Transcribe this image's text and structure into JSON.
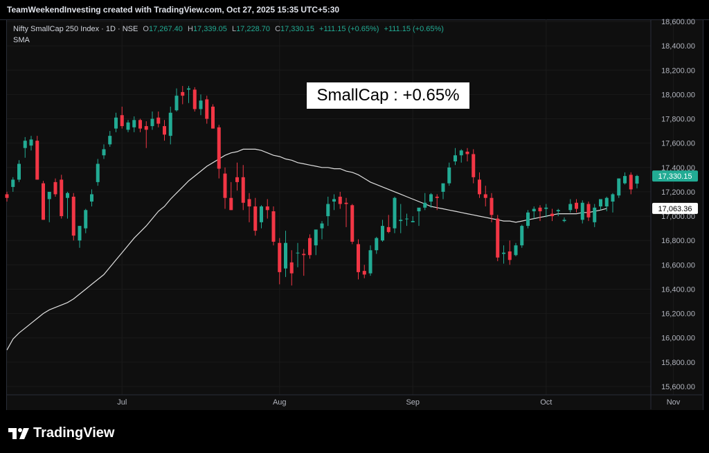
{
  "header": {
    "credit": "TeamWeekendInvesting created with TradingView.com, Oct 27, 2025 15:35 UTC+5:30"
  },
  "legend": {
    "symbol": "Nifty SmallCap 250 Index · 1D · NSE",
    "o_label": "O",
    "o_value": "17,267.40",
    "h_label": "H",
    "h_value": "17,339.05",
    "l_label": "L",
    "l_value": "17,228.70",
    "c_label": "C",
    "c_value": "17,330.15",
    "change1": "+111.15 (+0.65%)",
    "change2": "+111.15 (+0.65%)",
    "indicator": "SMA"
  },
  "annotation": {
    "text": "SmallCap : +0.65%"
  },
  "footer": {
    "brand": "TradingView"
  },
  "colors": {
    "up": "#22ab94",
    "down": "#f23645",
    "sma": "#e0e0e0",
    "bg": "#0f0f0f",
    "axis_text": "#b2b5be"
  },
  "chart_data": {
    "type": "candlestick",
    "y_range": [
      15500,
      18650
    ],
    "y_ticks": [
      15600,
      15800,
      16000,
      16200,
      16400,
      16600,
      16800,
      17000,
      17200,
      17400,
      17600,
      17800,
      18000,
      18200,
      18400,
      18600
    ],
    "y_tick_labels": [
      "15,600.00",
      "15,800.00",
      "16,000.00",
      "16,200.00",
      "16,400.00",
      "16,600.00",
      "16,800.00",
      "17,000.00",
      "17,200.00",
      "17,400.00",
      "17,600.00",
      "17,800.00",
      "18,000.00",
      "18,200.00",
      "18,400.00",
      "18,600.00"
    ],
    "x_labels": [
      {
        "label": "Jul",
        "index": 19
      },
      {
        "label": "Aug",
        "index": 45
      },
      {
        "label": "Sep",
        "index": 67
      },
      {
        "label": "Oct",
        "index": 89
      },
      {
        "label": "Nov",
        "index": 110
      }
    ],
    "x_slots": 118,
    "last_price": {
      "label": "17,330.15",
      "value": 17330.15
    },
    "sma_value": {
      "label": "17,063.36",
      "value": 17063.36
    },
    "candles": [
      [
        17180,
        17200,
        17120,
        17150
      ],
      [
        17240,
        17320,
        17200,
        17300
      ],
      [
        17300,
        17460,
        17280,
        17430
      ],
      [
        17560,
        17650,
        17480,
        17620
      ],
      [
        17580,
        17660,
        17540,
        17630
      ],
      [
        17620,
        17660,
        17300,
        17300
      ],
      [
        17270,
        17290,
        16970,
        16970
      ],
      [
        17140,
        17180,
        16950,
        17200
      ],
      [
        17280,
        17310,
        17160,
        17180
      ],
      [
        17300,
        17340,
        16980,
        17000
      ],
      [
        17150,
        17200,
        16980,
        17190
      ],
      [
        17160,
        17190,
        16800,
        16840
      ],
      [
        16800,
        16900,
        16740,
        16920
      ],
      [
        16900,
        17060,
        16860,
        17050
      ],
      [
        17120,
        17220,
        17080,
        17180
      ],
      [
        17280,
        17470,
        17250,
        17430
      ],
      [
        17500,
        17590,
        17470,
        17550
      ],
      [
        17590,
        17700,
        17570,
        17660
      ],
      [
        17720,
        17850,
        17690,
        17810
      ],
      [
        17830,
        17900,
        17720,
        17740
      ],
      [
        17710,
        17790,
        17690,
        17770
      ],
      [
        17730,
        17820,
        17690,
        17790
      ],
      [
        17790,
        17800,
        17690,
        17720
      ],
      [
        17740,
        17780,
        17560,
        17710
      ],
      [
        17740,
        17860,
        17710,
        17800
      ],
      [
        17810,
        17860,
        17730,
        17760
      ],
      [
        17740,
        17790,
        17620,
        17670
      ],
      [
        17660,
        17900,
        17590,
        17850
      ],
      [
        17870,
        18050,
        17860,
        17990
      ],
      [
        18020,
        18070,
        17920,
        17990
      ],
      [
        18040,
        18070,
        17930,
        18050
      ],
      [
        18040,
        18060,
        17860,
        17880
      ],
      [
        17880,
        18000,
        17830,
        17950
      ],
      [
        17960,
        17990,
        17760,
        17800
      ],
      [
        17900,
        17920,
        17720,
        17720
      ],
      [
        17730,
        17750,
        17310,
        17390
      ],
      [
        17350,
        17400,
        17060,
        17150
      ],
      [
        17150,
        17280,
        17050,
        17050
      ],
      [
        17320,
        17440,
        17210,
        17280
      ],
      [
        17320,
        17420,
        17050,
        17110
      ],
      [
        17140,
        17190,
        16950,
        17080
      ],
      [
        17080,
        17150,
        16840,
        16880
      ],
      [
        16950,
        17090,
        16900,
        17080
      ],
      [
        17080,
        17140,
        16980,
        17050
      ],
      [
        17040,
        17080,
        16760,
        16790
      ],
      [
        16780,
        16820,
        16440,
        16540
      ],
      [
        16570,
        16880,
        16500,
        16780
      ],
      [
        16620,
        16720,
        16430,
        16530
      ],
      [
        16700,
        16780,
        16580,
        16700
      ],
      [
        16690,
        16730,
        16510,
        16680
      ],
      [
        16820,
        16850,
        16650,
        16680
      ],
      [
        16760,
        16860,
        16680,
        16890
      ],
      [
        16900,
        16960,
        16810,
        16940
      ],
      [
        17000,
        17160,
        16920,
        17100
      ],
      [
        17120,
        17180,
        17050,
        17140
      ],
      [
        17160,
        17200,
        17060,
        17100
      ],
      [
        17110,
        17150,
        16910,
        17100
      ],
      [
        17090,
        17100,
        16770,
        16790
      ],
      [
        16770,
        16810,
        16480,
        16540
      ],
      [
        16550,
        16600,
        16490,
        16520
      ],
      [
        16530,
        16760,
        16510,
        16720
      ],
      [
        16720,
        16830,
        16690,
        16820
      ],
      [
        16800,
        16970,
        16790,
        16920
      ],
      [
        16910,
        17010,
        16860,
        16870
      ],
      [
        16900,
        17160,
        16860,
        17150
      ],
      [
        16960,
        17100,
        16860,
        16970
      ],
      [
        16980,
        17020,
        16920,
        16980
      ],
      [
        16950,
        17000,
        16950,
        16960
      ],
      [
        17040,
        17050,
        16920,
        17070
      ],
      [
        17070,
        17190,
        17050,
        17110
      ],
      [
        17120,
        17190,
        17070,
        17180
      ],
      [
        17160,
        17180,
        17050,
        17150
      ],
      [
        17200,
        17260,
        17140,
        17270
      ],
      [
        17270,
        17440,
        17250,
        17400
      ],
      [
        17450,
        17560,
        17420,
        17500
      ],
      [
        17500,
        17550,
        17440,
        17540
      ],
      [
        17530,
        17560,
        17450,
        17510
      ],
      [
        17510,
        17550,
        17270,
        17320
      ],
      [
        17300,
        17360,
        17150,
        17180
      ],
      [
        17180,
        17250,
        17080,
        17150
      ],
      [
        17150,
        17190,
        16950,
        17010
      ],
      [
        16980,
        17010,
        16630,
        16660
      ],
      [
        16690,
        16760,
        16610,
        16700
      ],
      [
        16710,
        16800,
        16600,
        16640
      ],
      [
        16680,
        16780,
        16670,
        16760
      ],
      [
        16760,
        16930,
        16740,
        16920
      ],
      [
        16920,
        17050,
        16900,
        17030
      ],
      [
        17040,
        17080,
        16980,
        17060
      ],
      [
        17070,
        17090,
        16960,
        17040
      ],
      [
        17060,
        17100,
        16990,
        17070
      ],
      [
        17020,
        17060,
        16960,
        17000
      ],
      [
        17040,
        17060,
        17000,
        17050
      ],
      [
        16960,
        16990,
        16950,
        16970
      ],
      [
        17050,
        17140,
        17030,
        17100
      ],
      [
        17110,
        17140,
        17030,
        17060
      ],
      [
        16970,
        17130,
        16940,
        17110
      ],
      [
        17100,
        17120,
        16960,
        16990
      ],
      [
        16950,
        17100,
        16910,
        17070
      ],
      [
        17080,
        17140,
        17050,
        17140
      ],
      [
        17080,
        17160,
        17040,
        17150
      ],
      [
        17120,
        17190,
        17030,
        17180
      ],
      [
        17170,
        17310,
        17150,
        17310
      ],
      [
        17270,
        17360,
        17260,
        17330
      ],
      [
        17340,
        17360,
        17180,
        17220
      ],
      [
        17267.4,
        17339.05,
        17228.7,
        17330.15
      ]
    ],
    "sma": [
      15900,
      15990,
      16040,
      16080,
      16120,
      16160,
      16200,
      16230,
      16250,
      16270,
      16290,
      16320,
      16360,
      16400,
      16440,
      16480,
      16520,
      16580,
      16640,
      16700,
      16760,
      16820,
      16870,
      16920,
      16980,
      17040,
      17080,
      17140,
      17190,
      17240,
      17290,
      17330,
      17370,
      17410,
      17440,
      17470,
      17500,
      17520,
      17530,
      17550,
      17550,
      17550,
      17540,
      17520,
      17500,
      17490,
      17470,
      17460,
      17440,
      17430,
      17420,
      17410,
      17400,
      17400,
      17390,
      17390,
      17370,
      17360,
      17340,
      17310,
      17280,
      17260,
      17240,
      17220,
      17200,
      17180,
      17160,
      17140,
      17120,
      17100,
      17080,
      17070,
      17060,
      17050,
      17040,
      17030,
      17020,
      17010,
      17000,
      16990,
      16980,
      16970,
      16960,
      16960,
      16950,
      16960,
      16970,
      16980,
      16990,
      17000,
      17010,
      17020,
      17020,
      17020,
      17020,
      17030,
      17030,
      17040,
      17050,
      17063.36
    ]
  }
}
